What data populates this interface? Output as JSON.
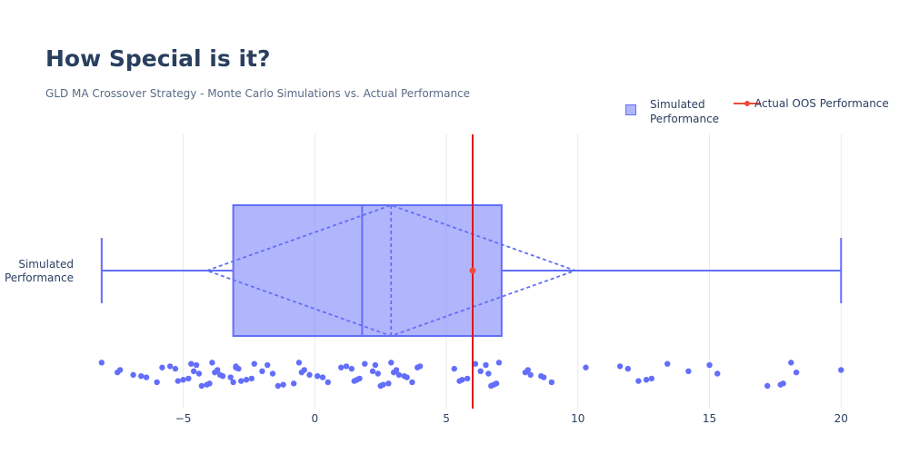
{
  "chart_data": {
    "type": "box",
    "title": "How Special is it?",
    "subtitle": "GLD MA Crossover Strategy - Monte Carlo Simulations vs. Actual Performance",
    "category_label": "Simulated\nPerformance",
    "xlim": [
      -9.2,
      21.2
    ],
    "x_ticks": [
      -5,
      0,
      5,
      10,
      15,
      20
    ],
    "x_tick_labels": [
      "−5",
      "0",
      "5",
      "10",
      "15",
      "20"
    ],
    "grid": true,
    "legend_position": "top-right",
    "colors": {
      "box": "#636efa",
      "box_fill": "rgba(99,110,250,0.5)",
      "actual": "#f14a3a",
      "actual_line": "#e0161e"
    },
    "series": [
      {
        "name": "Simulated Performance",
        "type": "box",
        "min": -8.1,
        "q1": -3.1,
        "median": 1.8,
        "q3": 7.1,
        "max": 20.0,
        "mean": 2.9,
        "mean_minus_sd": -4.1,
        "mean_plus_sd": 9.9,
        "points": [
          -8.1,
          -7.5,
          -7.4,
          -6.9,
          -6.6,
          -6.4,
          -6.0,
          -5.8,
          -5.5,
          -5.3,
          -5.2,
          -5.0,
          -4.8,
          -4.7,
          -4.6,
          -4.5,
          -4.4,
          -4.3,
          -4.1,
          -4.0,
          -3.9,
          -3.8,
          -3.7,
          -3.6,
          -3.5,
          -3.2,
          -3.1,
          -3.0,
          -3.0,
          -2.9,
          -2.8,
          -2.6,
          -2.4,
          -2.3,
          -2.0,
          -1.8,
          -1.6,
          -1.4,
          -1.2,
          -0.8,
          -0.6,
          -0.5,
          -0.4,
          -0.2,
          0.1,
          0.3,
          0.5,
          1.0,
          1.2,
          1.4,
          1.5,
          1.6,
          1.7,
          1.9,
          2.2,
          2.3,
          2.4,
          2.5,
          2.6,
          2.8,
          2.9,
          3.0,
          3.1,
          3.2,
          3.4,
          3.5,
          3.7,
          3.9,
          4.0,
          5.3,
          5.5,
          5.6,
          5.8,
          6.1,
          6.3,
          6.5,
          6.6,
          6.7,
          6.8,
          6.9,
          7.0,
          8.0,
          8.1,
          8.2,
          8.6,
          8.7,
          9.0,
          10.3,
          11.6,
          11.9,
          12.3,
          12.6,
          12.8,
          13.4,
          14.2,
          15.0,
          15.3,
          17.2,
          17.7,
          17.8,
          18.1,
          18.3,
          20.0
        ]
      },
      {
        "name": "Actual OOS Performance",
        "type": "line",
        "x": 6.0
      }
    ]
  }
}
